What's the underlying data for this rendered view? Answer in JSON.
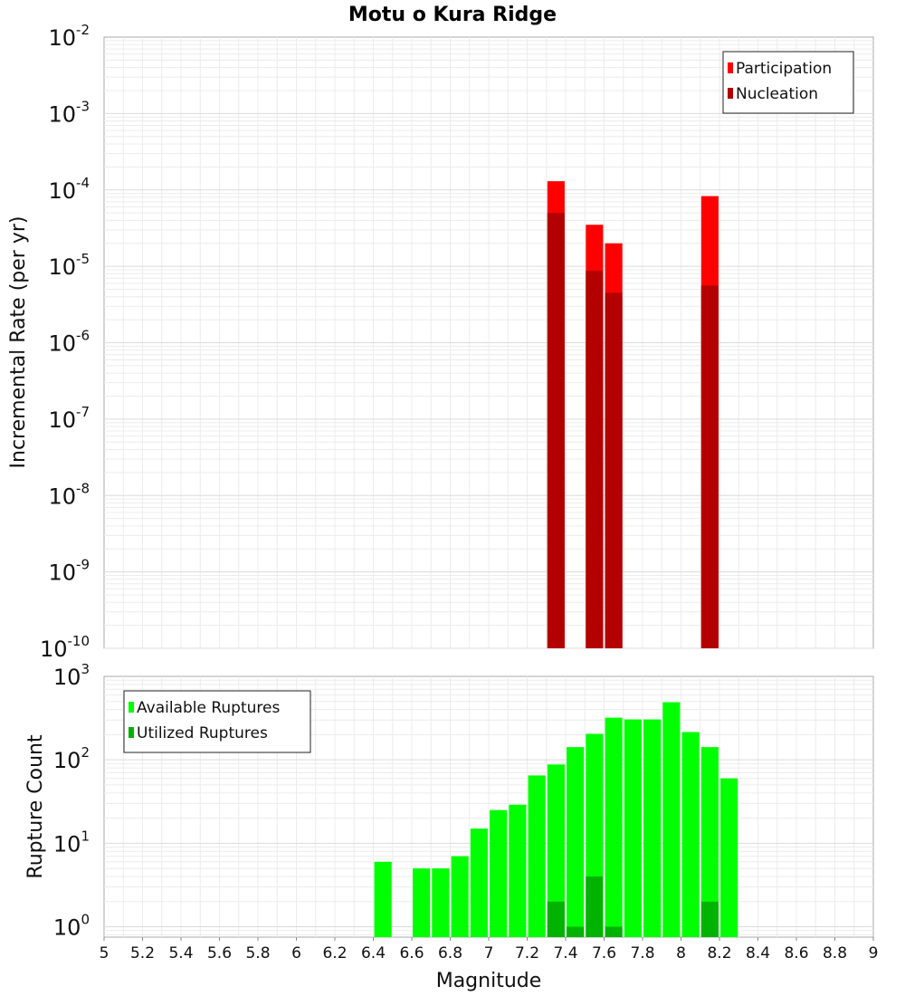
{
  "chart_data": [
    {
      "type": "bar",
      "title": "Motu o Kura Ridge",
      "xlabel": "",
      "ylabel": "Incremental Rate (per yr)",
      "yscale": "log",
      "ylim": [
        1e-10,
        0.01
      ],
      "xlim": [
        5,
        9
      ],
      "grid": true,
      "legend_position": "top-right",
      "bar_width": 0.09,
      "series": [
        {
          "name": "Participation",
          "color": "#ff0000",
          "x": [
            7.35,
            7.55,
            7.65,
            8.15
          ],
          "values": [
            0.00013,
            3.5e-05,
            2e-05,
            8.3e-05
          ]
        },
        {
          "name": "Nucleation",
          "color": "#b30000",
          "x": [
            7.35,
            7.55,
            7.65,
            8.15
          ],
          "values": [
            5e-05,
            8.7e-06,
            4.5e-06,
            5.6e-06
          ]
        }
      ],
      "yticks": [
        {
          "base": "10",
          "exp": "-2"
        },
        {
          "base": "10",
          "exp": "-3"
        },
        {
          "base": "10",
          "exp": "-4"
        },
        {
          "base": "10",
          "exp": "-5"
        },
        {
          "base": "10",
          "exp": "-6"
        },
        {
          "base": "10",
          "exp": "-7"
        },
        {
          "base": "10",
          "exp": "-8"
        },
        {
          "base": "10",
          "exp": "-9"
        },
        {
          "base": "10",
          "exp": "-10"
        }
      ]
    },
    {
      "type": "bar",
      "title": "",
      "xlabel": "Magnitude",
      "ylabel": "Rupture Count",
      "yscale": "log",
      "ylim": [
        0.75,
        1000
      ],
      "xlim": [
        5,
        9
      ],
      "grid": true,
      "legend_position": "top-left",
      "bar_width": 0.09,
      "series": [
        {
          "name": "Available Ruptures",
          "color": "#00ff00",
          "x": [
            6.45,
            6.65,
            6.75,
            6.85,
            6.95,
            7.05,
            7.15,
            7.25,
            7.35,
            7.45,
            7.55,
            7.65,
            7.75,
            7.85,
            7.95,
            8.05,
            8.15,
            8.25
          ],
          "values": [
            6,
            5,
            5,
            7,
            15,
            25,
            29,
            65,
            88,
            142,
            205,
            320,
            305,
            305,
            490,
            215,
            142,
            60
          ]
        },
        {
          "name": "Utilized Ruptures",
          "color": "#00b300",
          "x": [
            7.35,
            7.45,
            7.55,
            7.65,
            8.15
          ],
          "values": [
            2,
            1,
            4,
            1,
            2
          ]
        }
      ],
      "yticks": [
        {
          "base": "10",
          "exp": "3"
        },
        {
          "base": "10",
          "exp": "2"
        },
        {
          "base": "10",
          "exp": "1"
        },
        {
          "base": "10",
          "exp": "0"
        }
      ],
      "xticks": [
        "5",
        "5.2",
        "5.4",
        "5.6",
        "5.8",
        "6",
        "6.2",
        "6.4",
        "6.6",
        "6.8",
        "7",
        "7.2",
        "7.4",
        "7.6",
        "7.8",
        "8",
        "8.2",
        "8.4",
        "8.6",
        "8.8",
        "9"
      ]
    }
  ]
}
